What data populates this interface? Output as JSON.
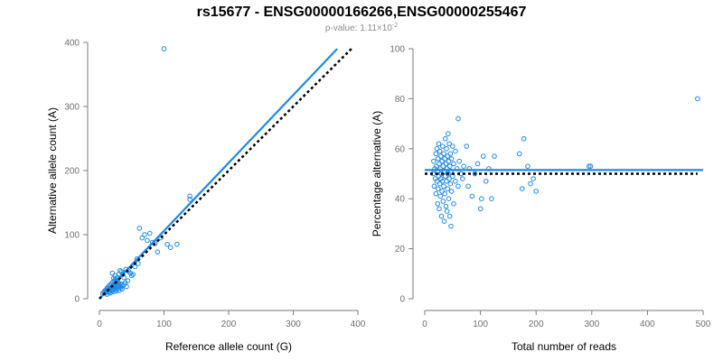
{
  "title": "rs15677 - ENSG00000166266,ENSG00000255467",
  "subtitle": {
    "prefix": "p-value: 1.11×10",
    "exponent": "-2"
  },
  "colors": {
    "series": "#1e88e5",
    "reference_line": "#000000",
    "axis": "#7a7a7a"
  },
  "chart_data": [
    {
      "type": "scatter",
      "xlabel": "Reference allele count (G)",
      "ylabel": "Alternative allele count (A)",
      "xlim": [
        0,
        400
      ],
      "ylim": [
        0,
        400
      ],
      "xticks": [
        0,
        100,
        200,
        300,
        400
      ],
      "yticks": [
        0,
        100,
        200,
        300,
        400
      ],
      "grid": false,
      "points": [
        [
          5,
          8
        ],
        [
          7,
          10
        ],
        [
          8,
          12
        ],
        [
          9,
          9
        ],
        [
          10,
          14
        ],
        [
          11,
          11
        ],
        [
          12,
          16
        ],
        [
          12,
          7
        ],
        [
          13,
          18
        ],
        [
          14,
          13
        ],
        [
          15,
          20
        ],
        [
          15,
          10
        ],
        [
          16,
          15
        ],
        [
          17,
          22
        ],
        [
          17,
          9
        ],
        [
          18,
          17
        ],
        [
          19,
          24
        ],
        [
          19,
          12
        ],
        [
          20,
          19
        ],
        [
          20,
          14
        ],
        [
          21,
          26
        ],
        [
          21,
          16
        ],
        [
          22,
          21
        ],
        [
          22,
          11
        ],
        [
          23,
          28
        ],
        [
          23,
          18
        ],
        [
          24,
          23
        ],
        [
          24,
          15
        ],
        [
          25,
          30
        ],
        [
          25,
          20
        ],
        [
          26,
          25
        ],
        [
          26,
          12
        ],
        [
          27,
          18
        ],
        [
          27,
          22
        ],
        [
          28,
          16
        ],
        [
          28,
          27
        ],
        [
          29,
          20
        ],
        [
          30,
          24
        ],
        [
          30,
          13
        ],
        [
          31,
          21
        ],
        [
          32,
          19
        ],
        [
          33,
          17
        ],
        [
          34,
          23
        ],
        [
          35,
          15
        ],
        [
          36,
          20
        ],
        [
          38,
          22
        ],
        [
          40,
          25
        ],
        [
          42,
          19
        ],
        [
          44,
          28
        ],
        [
          20,
          40
        ],
        [
          22,
          32
        ],
        [
          24,
          36
        ],
        [
          26,
          28
        ],
        [
          28,
          33
        ],
        [
          30,
          38
        ],
        [
          32,
          44
        ],
        [
          34,
          42
        ],
        [
          36,
          38
        ],
        [
          38,
          33
        ],
        [
          41,
          46
        ],
        [
          45,
          43
        ],
        [
          48,
          40
        ],
        [
          50,
          36
        ],
        [
          52,
          38
        ],
        [
          55,
          50
        ],
        [
          58,
          62
        ],
        [
          60,
          55
        ],
        [
          62,
          110
        ],
        [
          66,
          95
        ],
        [
          70,
          100
        ],
        [
          74,
          91
        ],
        [
          78,
          102
        ],
        [
          82,
          88
        ],
        [
          86,
          86
        ],
        [
          90,
          73
        ],
        [
          95,
          95
        ],
        [
          100,
          390
        ],
        [
          105,
          85
        ],
        [
          110,
          80
        ],
        [
          120,
          85
        ],
        [
          140,
          155
        ],
        [
          140,
          160
        ]
      ],
      "fit_line": {
        "x": [
          0,
          368
        ],
        "y": [
          0,
          390
        ]
      },
      "reference_line": {
        "x": [
          0,
          390
        ],
        "y": [
          0,
          390
        ]
      }
    },
    {
      "type": "scatter",
      "xlabel": "Total number of reads",
      "ylabel": "Percentage alternative (A)",
      "xlim": [
        0,
        500
      ],
      "ylim": [
        0,
        100
      ],
      "xticks": [
        0,
        100,
        200,
        300,
        400,
        500
      ],
      "yticks": [
        0,
        20,
        40,
        60,
        80,
        100
      ],
      "grid": false,
      "points": [
        [
          15,
          50
        ],
        [
          16,
          55
        ],
        [
          17,
          45
        ],
        [
          18,
          52
        ],
        [
          19,
          48
        ],
        [
          20,
          58
        ],
        [
          20,
          42
        ],
        [
          21,
          53
        ],
        [
          22,
          47
        ],
        [
          22,
          60
        ],
        [
          23,
          51
        ],
        [
          23,
          38
        ],
        [
          24,
          56
        ],
        [
          24,
          44
        ],
        [
          25,
          49
        ],
        [
          25,
          62
        ],
        [
          26,
          54
        ],
        [
          26,
          36
        ],
        [
          27,
          46
        ],
        [
          27,
          59
        ],
        [
          28,
          52
        ],
        [
          28,
          41
        ],
        [
          29,
          57
        ],
        [
          29,
          48
        ],
        [
          30,
          50
        ],
        [
          30,
          33
        ],
        [
          31,
          55
        ],
        [
          31,
          43
        ],
        [
          32,
          61
        ],
        [
          32,
          47
        ],
        [
          33,
          53
        ],
        [
          33,
          39
        ],
        [
          34,
          58
        ],
        [
          34,
          45
        ],
        [
          35,
          51
        ],
        [
          35,
          31
        ],
        [
          36,
          56
        ],
        [
          36,
          42
        ],
        [
          37,
          49
        ],
        [
          37,
          64
        ],
        [
          38,
          54
        ],
        [
          38,
          37
        ],
        [
          39,
          47
        ],
        [
          39,
          60
        ],
        [
          40,
          52
        ],
        [
          40,
          35
        ],
        [
          41,
          57
        ],
        [
          41,
          44
        ],
        [
          42,
          50
        ],
        [
          42,
          66
        ],
        [
          43,
          55
        ],
        [
          43,
          40
        ],
        [
          44,
          48
        ],
        [
          44,
          62
        ],
        [
          45,
          53
        ],
        [
          45,
          33
        ],
        [
          46,
          46
        ],
        [
          46,
          58
        ],
        [
          47,
          51
        ],
        [
          47,
          29
        ],
        [
          48,
          56
        ],
        [
          48,
          43
        ],
        [
          50,
          49
        ],
        [
          50,
          61
        ],
        [
          52,
          54
        ],
        [
          52,
          38
        ],
        [
          55,
          47
        ],
        [
          55,
          59
        ],
        [
          58,
          52
        ],
        [
          60,
          72
        ],
        [
          60,
          45
        ],
        [
          62,
          55
        ],
        [
          65,
          50
        ],
        [
          68,
          48
        ],
        [
          70,
          53
        ],
        [
          75,
          61
        ],
        [
          78,
          45
        ],
        [
          80,
          52
        ],
        [
          85,
          41
        ],
        [
          90,
          50
        ],
        [
          95,
          54
        ],
        [
          100,
          36
        ],
        [
          102,
          40
        ],
        [
          105,
          57
        ],
        [
          110,
          47
        ],
        [
          115,
          52
        ],
        [
          120,
          40
        ],
        [
          125,
          57
        ],
        [
          170,
          58
        ],
        [
          175,
          44
        ],
        [
          178,
          64
        ],
        [
          185,
          53
        ],
        [
          190,
          46
        ],
        [
          195,
          48
        ],
        [
          200,
          43
        ],
        [
          295,
          53
        ],
        [
          298,
          53
        ],
        [
          490,
          80
        ]
      ],
      "fit_line": {
        "x": [
          0,
          500
        ],
        "y": [
          51.5,
          51.5
        ]
      },
      "reference_line": {
        "x": [
          0,
          490
        ],
        "y": [
          50,
          50
        ]
      }
    }
  ]
}
